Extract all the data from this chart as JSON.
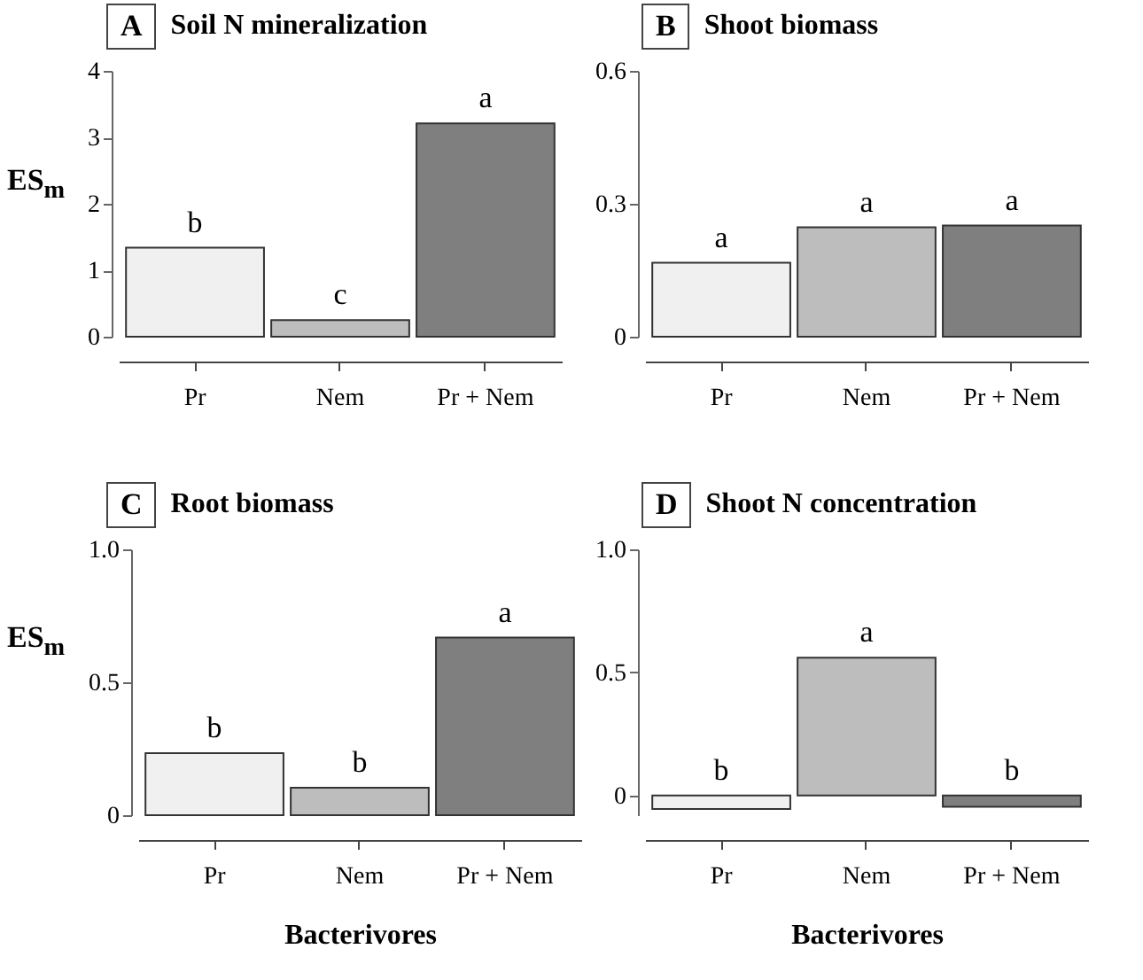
{
  "chart_data": [
    {
      "type": "bar",
      "title": "Soil N mineralization",
      "subtitle": "A",
      "ylabel": "ES$_{m}$",
      "categories": [
        "Pr",
        "Nem",
        "Pr + Nem"
      ],
      "values": [
        1.34,
        0.25,
        3.21
      ],
      "colors": [
        "#f0f0f0",
        "#bdbdbd",
        "#7f7f7f"
      ],
      "ylim": [
        0,
        4
      ],
      "yticks": [
        0,
        1,
        2,
        3,
        4
      ],
      "annotations": [
        {
          "text": "b",
          "x": "Pr",
          "y": 1.34
        },
        {
          "text": "c",
          "x": "Nem",
          "y": 0.25
        },
        {
          "text": "a",
          "x": "Pr + Nem",
          "y": 3.21
        }
      ]
    },
    {
      "type": "bar",
      "title": "Shoot biomass",
      "subtitle": "B",
      "categories": [
        "Pr",
        "Nem",
        "Pr + Nem"
      ],
      "values": [
        0.167,
        0.247,
        0.251
      ],
      "colors": [
        "#f0f0f0",
        "#bdbdbd",
        "#7f7f7f"
      ],
      "ylim": [
        0,
        0.6
      ],
      "yticks": [
        0,
        0.3,
        0.6
      ],
      "annotations": [
        {
          "text": "a",
          "x": "Pr",
          "y": 0.167
        },
        {
          "text": "a",
          "x": "Nem",
          "y": 0.247
        },
        {
          "text": "a",
          "x": "Pr + Nem",
          "y": 0.251
        }
      ]
    },
    {
      "type": "bar",
      "title": "Root biomass",
      "subtitle": "C",
      "ylabel": "ES$_{m}$",
      "xlabel": "Bacterivores",
      "categories": [
        "Pr",
        "Nem",
        "Pr + Nem"
      ],
      "values": [
        0.233,
        0.103,
        0.668
      ],
      "colors": [
        "#f0f0f0",
        "#bdbdbd",
        "#7f7f7f"
      ],
      "ylim": [
        0,
        1
      ],
      "yticks": [
        0,
        0.5,
        {
          "value": 1,
          "label": "1.0"
        }
      ],
      "annotations": [
        {
          "text": "b",
          "x": "Pr",
          "y": 0.233
        },
        {
          "text": "b",
          "x": "Nem",
          "y": 0.103
        },
        {
          "text": "a",
          "x": "Pr + Nem",
          "y": 0.668
        }
      ]
    },
    {
      "type": "bar",
      "title": "Shoot N concentration",
      "subtitle": "D",
      "xlabel": "Bacterivores",
      "categories": [
        "Pr",
        "Nem",
        "Pr + Nem"
      ],
      "values": [
        -0.055,
        0.56,
        -0.046
      ],
      "colors": [
        "#f0f0f0",
        "#bdbdbd",
        "#7f7f7f"
      ],
      "ylim": [
        -0.08,
        1
      ],
      "yticks": [
        0,
        0.5,
        {
          "value": 1,
          "label": "1.0"
        }
      ],
      "annotations": [
        {
          "text": "b",
          "x": "Pr",
          "y": -0.055
        },
        {
          "text": "a",
          "x": "Nem",
          "y": 0.56
        },
        {
          "text": "b",
          "x": "Pr + Nem",
          "y": -0.046
        }
      ]
    }
  ]
}
